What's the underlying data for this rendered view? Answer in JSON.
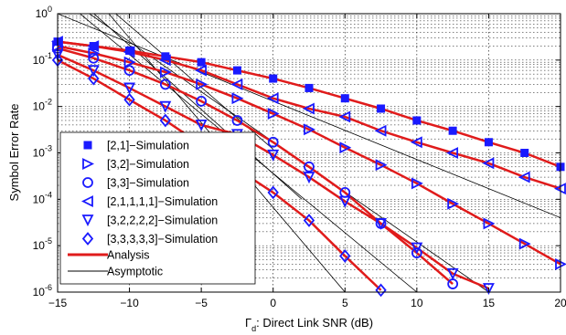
{
  "chart_data": {
    "type": "line",
    "xlabel_symbol": "Γ",
    "xlabel_sub": "d",
    "xlabel_rest": ": Direct Link SNR (dB)",
    "ylabel": "Symbol Error Rate",
    "xlim": [
      -15,
      20
    ],
    "ylim_log10": [
      -6,
      0
    ],
    "yscale": "log",
    "grid": true,
    "legend_position": "bottom-left",
    "x_ticks": [
      "−15",
      "−10",
      "−5",
      "0",
      "5",
      "10",
      "15",
      "20"
    ],
    "y_tick_exponents": [
      "0",
      "-1",
      "-2",
      "-3",
      "-4",
      "-5",
      "-6"
    ],
    "y_tick_base": "10",
    "colors": {
      "simulation": "#1a1aff",
      "analysis": "#e01b1b",
      "asymptotic": "#000000"
    },
    "series": [
      {
        "name": "[2,1]−Simulation",
        "marker": "square",
        "x": [
          -15,
          -12.5,
          -10,
          -7.5,
          -5,
          -2.5,
          0,
          2.5,
          5,
          7.5,
          10,
          12.5,
          15,
          17.5,
          20
        ],
        "y": [
          0.25,
          0.2,
          0.16,
          0.12,
          0.09,
          0.06,
          0.04,
          0.025,
          0.015,
          0.009,
          0.005,
          0.003,
          0.0017,
          0.001,
          0.0005
        ]
      },
      {
        "name": "[3,2]−Simulation",
        "marker": "triangle-right",
        "x": [
          -15,
          -12.5,
          -10,
          -7.5,
          -5,
          -2.5,
          0,
          2.5,
          5,
          7.5,
          10,
          12.5,
          15,
          17.5,
          20
        ],
        "y": [
          0.2,
          0.14,
          0.09,
          0.055,
          0.03,
          0.015,
          0.007,
          0.0032,
          0.0013,
          0.00055,
          0.00022,
          8e-05,
          3e-05,
          1.1e-05,
          4e-06
        ]
      },
      {
        "name": "[3,3]−Simulation",
        "marker": "circle",
        "x": [
          -15,
          -12.5,
          -10,
          -7.5,
          -5,
          -2.5,
          0,
          2.5,
          5,
          7.5,
          10,
          12.5
        ],
        "y": [
          0.18,
          0.11,
          0.06,
          0.03,
          0.013,
          0.005,
          0.0017,
          0.0005,
          0.00014,
          3e-05,
          7e-06,
          1.5e-06
        ]
      },
      {
        "name": "[2,1,1,1,1]−Simulation",
        "marker": "triangle-left",
        "x": [
          -15,
          -12.5,
          -10,
          -7.5,
          -5,
          -2.5,
          0,
          2.5,
          5,
          7.5,
          10,
          12.5,
          15,
          17.5,
          20
        ],
        "y": [
          0.25,
          0.2,
          0.15,
          0.1,
          0.06,
          0.03,
          0.015,
          0.009,
          0.006,
          0.003,
          0.0017,
          0.001,
          0.0006,
          0.0003,
          0.00017
        ]
      },
      {
        "name": "[3,2,2,2,2]−Simulation",
        "marker": "triangle-down",
        "x": [
          -15,
          -12.5,
          -10,
          -7.5,
          -5,
          -2.5,
          0,
          2.5,
          5,
          7.5,
          10,
          12.5,
          15
        ],
        "y": [
          0.13,
          0.06,
          0.025,
          0.01,
          0.004,
          0.0025,
          0.0009,
          0.0003,
          9e-05,
          3e-05,
          9e-06,
          2.5e-06,
          1.2e-06
        ]
      },
      {
        "name": "[3,3,3,3,3]−Simulation",
        "marker": "diamond",
        "x": [
          -15,
          -12.5,
          -10,
          -7.5,
          -5,
          -2.5,
          0,
          2.5,
          5,
          7.5
        ],
        "y": [
          0.1,
          0.04,
          0.014,
          0.005,
          0.0015,
          0.00045,
          0.00014,
          3.5e-05,
          6e-06,
          1.1e-06
        ]
      }
    ],
    "analysis_legend": "Analysis",
    "asymptotic_legend": "Asymptotic",
    "asymptotic_lines": [
      {
        "x": [
          -15,
          20
        ],
        "y": [
          1.0,
          4e-05
        ]
      },
      {
        "x": [
          -15,
          15
        ],
        "y": [
          3.0,
          1e-06
        ]
      },
      {
        "x": [
          -15,
          10
        ],
        "y": [
          2.5,
          1e-06
        ]
      },
      {
        "x": [
          -15,
          0
        ],
        "y": [
          12.0,
          0.0012
        ]
      },
      {
        "x": [
          -15,
          2
        ],
        "y": [
          5.0,
          0.0001
        ]
      },
      {
        "x": [
          -15,
          5
        ],
        "y": [
          20.0,
          1e-06
        ]
      }
    ]
  }
}
